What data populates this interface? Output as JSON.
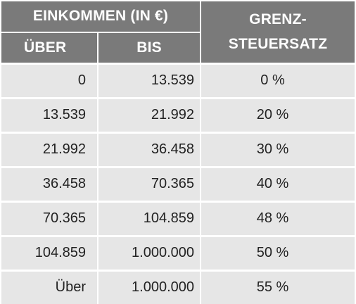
{
  "header": {
    "income_group": "EINKOMMEN (IN €)",
    "from": "ÜBER",
    "to": "BIS",
    "rate_line1": "GRENZ-",
    "rate_line2": "STEUERSATZ"
  },
  "rows": [
    {
      "from": "0",
      "to": "13.539",
      "rate": "0 %"
    },
    {
      "from": "13.539",
      "to": "21.992",
      "rate": "20 %"
    },
    {
      "from": "21.992",
      "to": "36.458",
      "rate": "30 %"
    },
    {
      "from": "36.458",
      "to": "70.365",
      "rate": "40 %"
    },
    {
      "from": "70.365",
      "to": "104.859",
      "rate": "48 %"
    },
    {
      "from": "104.859",
      "to": "1.000.000",
      "rate": "50 %"
    },
    {
      "from": "Über",
      "to": "1.000.000",
      "rate": "55 %"
    }
  ],
  "colors": {
    "header_bg": "#7a7a7a",
    "row_bg": "#e6e6e6",
    "separator": "#ffffff"
  }
}
